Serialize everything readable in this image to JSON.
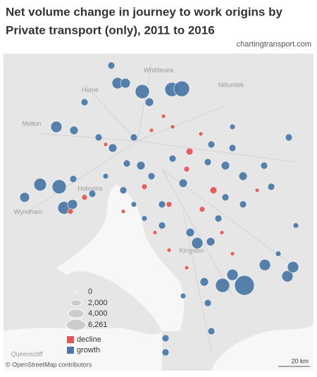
{
  "title": "Net volume change in journey to work origins by Private transport (only), 2011 to 2016",
  "source": "chartingtransport.com",
  "map_labels": [
    "Whittlesea",
    "Hume",
    "Nillumbik",
    "Melton",
    "Wyndham",
    "Hobsons",
    "Kingston",
    "Queenscliff"
  ],
  "legend": {
    "sizes": [
      0,
      {
        "value": 2000,
        "label": "2,000"
      },
      {
        "value": 4000,
        "label": "4,000"
      },
      {
        "value": 6261,
        "label": "6,261"
      }
    ],
    "colors": [
      {
        "label": "decline",
        "color": "#e15759"
      },
      {
        "label": "growth",
        "color": "#4e79a7"
      }
    ]
  },
  "bubble_values": [
    800,
    2050,
    1550,
    3200,
    3200,
    3870,
    2050,
    2590,
    3200,
    1550,
    2590,
    1550,
    800,
    800,
    6261,
    3200,
    2050,
    2050,
    2050,
    2050,
    2050,
    1150,
    1150,
    800,
    1150,
    800,
    1150,
    800,
    1150,
    800,
    800,
    1150,
    800,
    800,
    1150,
    800,
    800,
    800,
    1150,
    800,
    1150,
    800,
    800,
    500,
    500,
    1150,
    800,
    500,
    800,
    800,
    800,
    800,
    500,
    500,
    500,
    800,
    800,
    800,
    500,
    800,
    -800,
    -800,
    -510,
    -290,
    -290,
    -510,
    -510,
    -290,
    -510,
    -290,
    -290,
    -290,
    -290,
    -290,
    -290,
    -290,
    -510,
    -290,
    -290,
    -510
  ],
  "scale_label": "20 km",
  "attribution": "© OpenStreetMap contributors"
}
